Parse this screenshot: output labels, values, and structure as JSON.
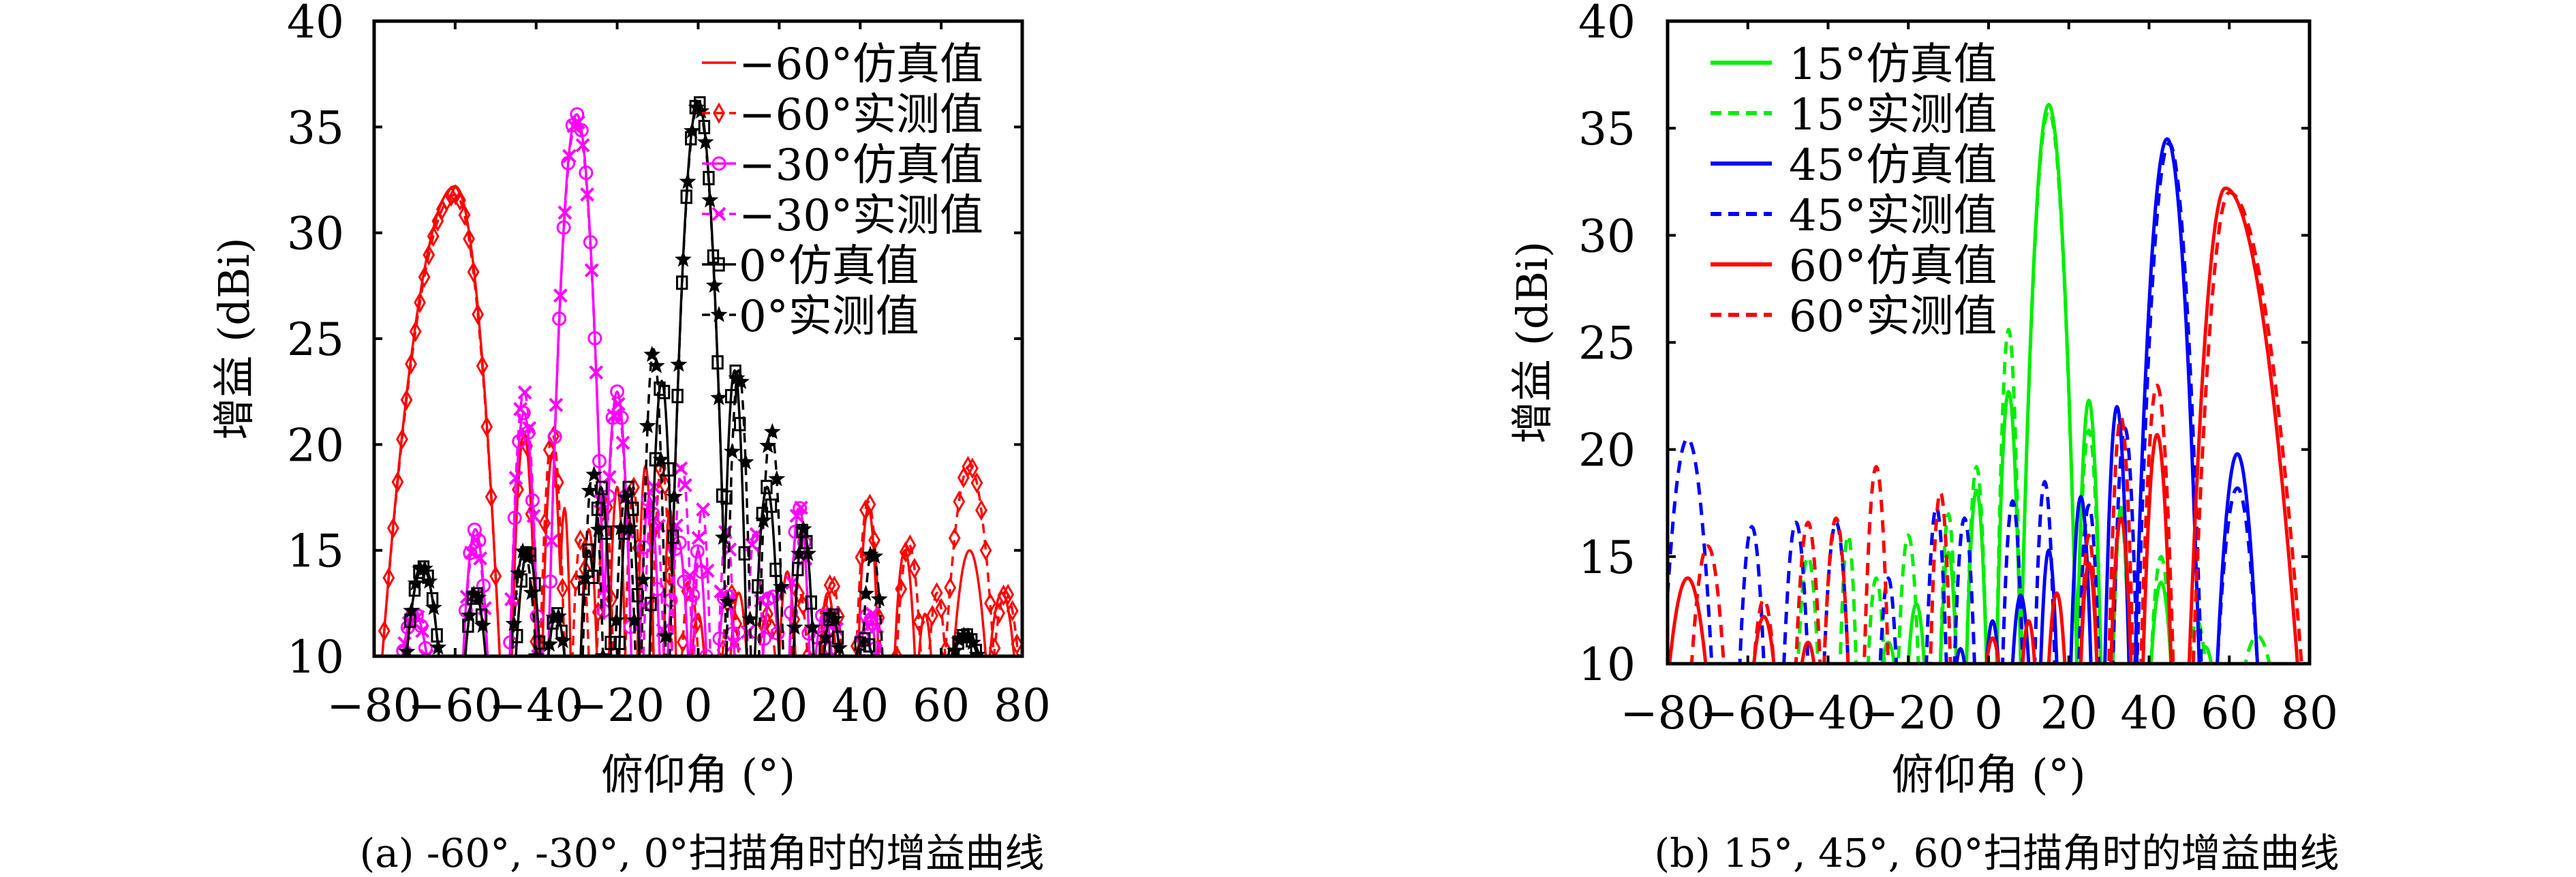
{
  "chart_data": [
    {
      "type": "line",
      "title": "(a) -60°, -30°, 0°扫描角时的增益曲线",
      "xlabel": "俯仰角 (°)",
      "ylabel": "增益 (dBi)",
      "xlim": [
        -80,
        80
      ],
      "ylim": [
        10,
        40
      ],
      "xticks": [
        "−80",
        "−60",
        "−40",
        "−20",
        "0",
        "20",
        "40",
        "60",
        "80"
      ],
      "yticks": [
        "10",
        "15",
        "20",
        "25",
        "30",
        "35",
        "40"
      ],
      "legend_position": "top-right",
      "grid": false,
      "series": [
        {
          "name": "−60°仿真值",
          "color": "#ff0000",
          "style": "solid",
          "marker": "none",
          "lobes": [
            [
              -60,
              32.2,
              18,
              11
            ],
            [
              -43,
              20.5,
              3
            ],
            [
              -36,
              19.5,
              2.5
            ],
            [
              -33,
              17,
              1.5
            ],
            [
              -27,
              16,
              2
            ],
            [
              -20,
              18,
              2
            ],
            [
              -13,
              19,
              2
            ],
            [
              -7,
              17,
              1.5
            ],
            [
              0,
              12,
              1.5
            ],
            [
              10,
              13,
              2
            ],
            [
              22,
              14,
              2
            ],
            [
              32,
              13,
              2
            ],
            [
              42,
              17,
              2.5
            ],
            [
              51,
              15,
              2.5
            ],
            [
              56,
              12,
              1.5
            ],
            [
              67,
              15,
              4
            ],
            [
              75,
              13,
              3
            ]
          ]
        },
        {
          "name": "−60°实测值",
          "color": "#ff0000",
          "style": "dashed",
          "marker": "diamond",
          "lobes": [
            [
              -60,
              31.8,
              18,
              11
            ],
            [
              -43,
              20.5,
              3
            ],
            [
              -36,
              20.5,
              3
            ],
            [
              -29,
              15.5,
              2
            ],
            [
              -23,
              17.5,
              2
            ],
            [
              -16,
              18,
              2
            ],
            [
              -9,
              19,
              2.5
            ],
            [
              -2,
              13.5,
              2
            ],
            [
              8,
              13,
              2
            ],
            [
              17,
              12,
              2
            ],
            [
              25,
              13,
              2
            ],
            [
              33,
              13.5,
              2.5
            ],
            [
              42,
              17.3,
              3
            ],
            [
              52,
              15.3,
              3
            ],
            [
              59,
              13,
              2
            ],
            [
              67,
              19,
              6
            ],
            [
              76,
              13,
              3
            ]
          ]
        },
        {
          "name": "−30°仿真值",
          "color": "#ff00ff",
          "style": "solid",
          "marker": "circle",
          "lobes": [
            [
              -30,
              35.6,
              7,
              7
            ],
            [
              -70,
              12,
              3
            ],
            [
              -55,
              16,
              3
            ],
            [
              -43,
              21.5,
              3.5
            ],
            [
              -20,
              22.5,
              3.5
            ],
            [
              -12,
              17.5,
              2.5
            ],
            [
              -5,
              15.5,
              2.5
            ],
            [
              0,
              15,
              2
            ],
            [
              7,
              13,
              2
            ],
            [
              18,
              13,
              2
            ],
            [
              25,
              17,
              2.5
            ],
            [
              31,
              12,
              2
            ],
            [
              42,
              12,
              2
            ]
          ]
        },
        {
          "name": "−30°实测值",
          "color": "#ff00ff",
          "style": "dashed",
          "marker": "x",
          "lobes": [
            [
              -30,
              35.3,
              7,
              7
            ],
            [
              -70,
              12,
              3
            ],
            [
              -55,
              15.5,
              3
            ],
            [
              -43,
              22.5,
              3.5
            ],
            [
              -20,
              22,
              3.5
            ],
            [
              -11,
              18,
              2.5
            ],
            [
              -4,
              19,
              2.5
            ],
            [
              1,
              17,
              2
            ],
            [
              7,
              16,
              2
            ],
            [
              14,
              16,
              2
            ],
            [
              25,
              17.2,
              2.5
            ],
            [
              33,
              12,
              2
            ],
            [
              43,
              12,
              2
            ]
          ]
        },
        {
          "name": "0°仿真值",
          "color": "#000000",
          "style": "solid",
          "marker": "square",
          "lobes": [
            [
              0,
              36.2,
              7,
              7
            ],
            [
              -68,
              14.2,
              4
            ],
            [
              -55,
              13,
              2.5
            ],
            [
              -42,
              15,
              3
            ],
            [
              -35,
              12,
              2
            ],
            [
              -27,
              15,
              2
            ],
            [
              -24,
              18,
              2.5
            ],
            [
              -17,
              18,
              2.5
            ],
            [
              -9,
              23,
              3
            ],
            [
              9,
              23.5,
              3
            ],
            [
              17,
              18,
              3
            ],
            [
              26,
              16,
              2.5
            ],
            [
              33,
              12,
              2
            ],
            [
              41,
              10.8,
              2
            ],
            [
              66,
              11,
              3
            ]
          ]
        },
        {
          "name": "0°实测值",
          "color": "#000000",
          "style": "dashed",
          "marker": "star",
          "lobes": [
            [
              0,
              36,
              7,
              7
            ],
            [
              -68,
              14.2,
              4
            ],
            [
              -55,
              13,
              2.5
            ],
            [
              -43,
              15,
              3
            ],
            [
              -35,
              12,
              2
            ],
            [
              -26,
              18.7,
              2.5
            ],
            [
              -18,
              17.5,
              2.5
            ],
            [
              -11,
              24.5,
              3
            ],
            [
              10,
              23.5,
              3
            ],
            [
              18,
              20.7,
              3
            ],
            [
              26,
              16,
              2.5
            ],
            [
              33,
              12,
              2
            ],
            [
              43,
              15,
              2.5
            ],
            [
              66,
              11,
              3
            ]
          ]
        }
      ]
    },
    {
      "type": "line",
      "title": "(b) 15°, 45°, 60°扫描角时的增益曲线",
      "xlabel": "俯仰角 (°)",
      "ylabel": "增益 (dBi)",
      "xlim": [
        -80,
        80
      ],
      "ylim": [
        10,
        40
      ],
      "xticks": [
        "−80",
        "−60",
        "−40",
        "−20",
        "0",
        "20",
        "40",
        "60",
        "80"
      ],
      "yticks": [
        "10",
        "15",
        "20",
        "25",
        "30",
        "35",
        "40"
      ],
      "legend_position": "top-left",
      "grid": false,
      "series": [
        {
          "name": "15°仿真值",
          "color": "#00ee00",
          "style": "solid",
          "marker": "none",
          "lobes": [
            [
              15,
              36.1,
              7,
              7
            ],
            [
              5,
              22.7,
              3
            ],
            [
              25,
              22.3,
              3
            ],
            [
              33,
              17.3,
              2
            ],
            [
              -3,
              18.1,
              2.5
            ],
            [
              -10,
              15.2,
              2
            ],
            [
              -18,
              12.8,
              2
            ],
            [
              -25,
              11,
              1.5
            ],
            [
              43,
              13.8,
              2.5
            ],
            [
              54,
              10.8,
              1.5
            ]
          ]
        },
        {
          "name": "15°实测值",
          "color": "#00ee00",
          "style": "dashed",
          "marker": "none",
          "lobes": [
            [
              15,
              35.8,
              7,
              7
            ],
            [
              5,
              25.6,
              3
            ],
            [
              25,
              20.9,
              3
            ],
            [
              33,
              17,
              2
            ],
            [
              -3,
              19.2,
              2.5
            ],
            [
              -10,
              17,
              2
            ],
            [
              -20,
              16,
              2.5
            ],
            [
              -28,
              14,
              2
            ],
            [
              -35,
              16,
              2
            ],
            [
              -45,
              15,
              2.5
            ],
            [
              43,
              15,
              2.5
            ],
            [
              52,
              12,
              2
            ],
            [
              67,
              11.3,
              3
            ]
          ]
        },
        {
          "name": "45°仿真值",
          "color": "#0000ff",
          "style": "solid",
          "marker": "none",
          "lobes": [
            [
              44.5,
              34.5,
              8,
              8
            ],
            [
              62,
              19.8,
              5
            ],
            [
              32,
              22,
              3
            ],
            [
              23,
              17.8,
              2.5
            ],
            [
              15,
              15.3,
              2
            ],
            [
              8,
              13.2,
              2
            ],
            [
              1,
              12,
              1.5
            ],
            [
              -7,
              10.7,
              1
            ]
          ]
        },
        {
          "name": "45°实测值",
          "color": "#0000ff",
          "style": "dashed",
          "marker": "none",
          "lobes": [
            [
              45,
              34.3,
              8,
              8
            ],
            [
              62,
              18.2,
              5
            ],
            [
              34,
              21,
              3
            ],
            [
              25,
              17.4,
              2.5
            ],
            [
              14,
              18.5,
              2.5
            ],
            [
              6,
              17.6,
              2.5
            ],
            [
              -6,
              16.8,
              2.5
            ],
            [
              -13,
              17.3,
              2.5
            ],
            [
              -25,
              14,
              2
            ],
            [
              -38,
              16.6,
              3
            ],
            [
              -48,
              16.6,
              3
            ],
            [
              -59,
              16.4,
              3
            ],
            [
              -75,
              20.5,
              6
            ]
          ]
        },
        {
          "name": "60°仿真值",
          "color": "#ff0000",
          "style": "solid",
          "marker": "none",
          "lobes": [
            [
              59,
              32.2,
              9,
              18
            ],
            [
              42,
              20.7,
              3.5
            ],
            [
              33,
              16.8,
              2.5
            ],
            [
              25,
              14.7,
              2
            ],
            [
              17,
              13.3,
              2
            ],
            [
              10,
              12,
              1.5
            ],
            [
              1,
              11.2,
              1.5
            ],
            [
              -75,
              14,
              4.5
            ],
            [
              -56,
              12.2,
              2.5
            ],
            [
              -45,
              11,
              1.5
            ]
          ]
        },
        {
          "name": "60°实测值",
          "color": "#ff0000",
          "style": "dashed",
          "marker": "none",
          "lobes": [
            [
              60,
              32,
              9,
              18
            ],
            [
              42,
              23,
              4
            ],
            [
              33,
              21.5,
              3
            ],
            [
              25,
              16,
              2
            ],
            [
              -12,
              18,
              2.5
            ],
            [
              -28,
              19.2,
              3
            ],
            [
              -38,
              16.8,
              3
            ],
            [
              -45,
              16.6,
              3
            ],
            [
              -70,
              15.5,
              4
            ],
            [
              -56,
              13,
              2.5
            ]
          ]
        }
      ]
    }
  ]
}
